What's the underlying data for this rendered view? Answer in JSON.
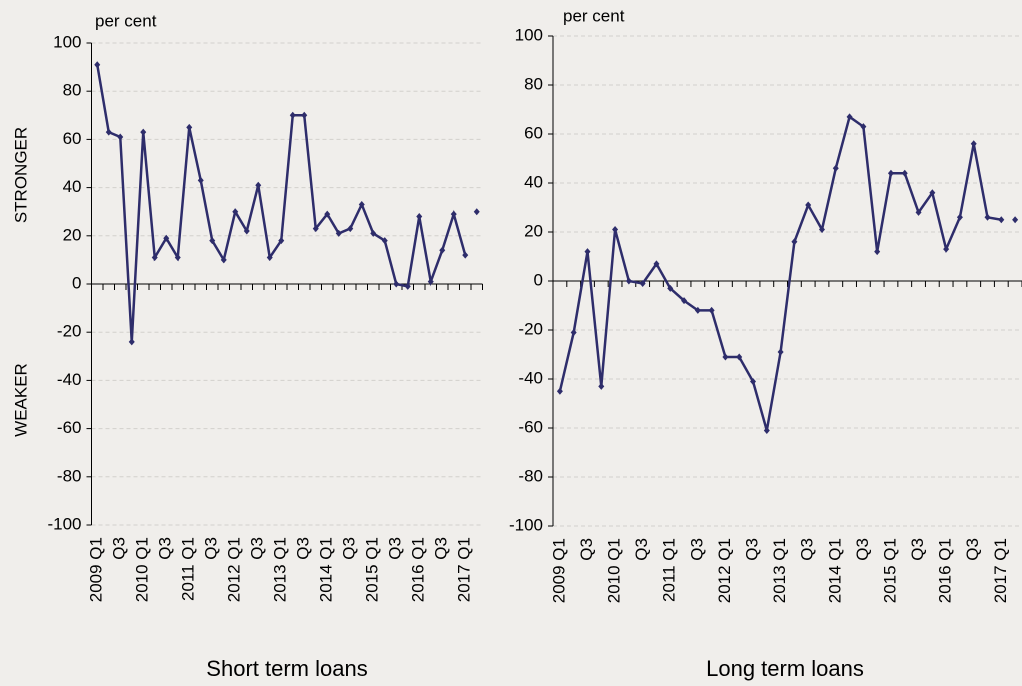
{
  "chart_data": [
    {
      "type": "line",
      "title": "Short term loans",
      "ylabel": "per cent",
      "annotations": [
        "STRONGER",
        "WEAKER"
      ],
      "categories": [
        "2009 Q1",
        null,
        "Q3",
        null,
        "2010 Q1",
        null,
        "Q3",
        null,
        "2011 Q1",
        null,
        "Q3",
        null,
        "2012 Q1",
        null,
        "Q3",
        null,
        "2013 Q1",
        null,
        "Q3",
        null,
        "2014 Q1",
        null,
        "Q3",
        null,
        "2015 Q1",
        null,
        "Q3",
        null,
        "2016 Q1",
        null,
        "Q3",
        null,
        "2017 Q1",
        null
      ],
      "series": [
        {
          "color": "#2e2d6b",
          "values": [
            91,
            63,
            61,
            -24,
            63,
            11,
            19,
            11,
            65,
            43,
            18,
            10,
            30,
            22,
            41,
            11,
            18,
            70,
            70,
            23,
            29,
            21,
            23,
            33,
            21,
            18,
            0,
            -1,
            28,
            1,
            14,
            29,
            12,
            null
          ]
        },
        {
          "color": "#2e2d6b",
          "values": [
            null,
            null,
            null,
            null,
            null,
            null,
            null,
            null,
            null,
            null,
            null,
            null,
            null,
            null,
            null,
            null,
            null,
            null,
            null,
            null,
            null,
            null,
            null,
            null,
            null,
            null,
            null,
            null,
            null,
            null,
            null,
            null,
            null,
            30
          ]
        }
      ],
      "ylim": [
        -100,
        100
      ],
      "yticks": [
        -100,
        -80,
        -60,
        -40,
        -20,
        0,
        20,
        40,
        60,
        80,
        100
      ],
      "grid": true
    },
    {
      "type": "line",
      "title": "Long term loans",
      "ylabel": "per cent",
      "categories": [
        "2009 Q1",
        null,
        "Q3",
        null,
        "2010 Q1",
        null,
        "Q3",
        null,
        "2011 Q1",
        null,
        "Q3",
        null,
        "2012 Q1",
        null,
        "Q3",
        null,
        "2013 Q1",
        null,
        "Q3",
        null,
        "2014 Q1",
        null,
        "Q3",
        null,
        "2015 Q1",
        null,
        "Q3",
        null,
        "2016 Q1",
        null,
        "Q3",
        null,
        "2017 Q1",
        null
      ],
      "series": [
        {
          "color": "#2e2d6b",
          "values": [
            -45,
            -21,
            12,
            -43,
            21,
            0,
            -1,
            7,
            -3,
            -8,
            -12,
            -12,
            -31,
            -31,
            -41,
            -61,
            -29,
            16,
            31,
            21,
            46,
            67,
            63,
            12,
            44,
            44,
            28,
            36,
            13,
            26,
            56,
            26,
            25,
            null
          ]
        },
        {
          "color": "#2e2d6b",
          "values": [
            null,
            null,
            null,
            null,
            null,
            null,
            null,
            null,
            null,
            null,
            null,
            null,
            null,
            null,
            null,
            null,
            null,
            null,
            null,
            null,
            null,
            null,
            null,
            null,
            null,
            null,
            null,
            null,
            null,
            null,
            null,
            null,
            null,
            25
          ]
        }
      ],
      "ylim": [
        -100,
        100
      ],
      "yticks": [
        -100,
        -80,
        -60,
        -40,
        -20,
        0,
        20,
        40,
        60,
        80,
        100
      ],
      "grid": true
    }
  ]
}
